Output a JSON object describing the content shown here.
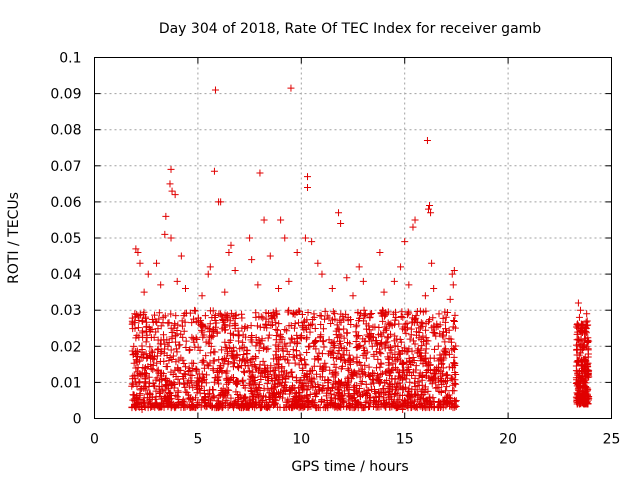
{
  "chart_data": {
    "type": "scatter",
    "title": "Day 304 of 2018, Rate Of TEC Index for receiver gamb",
    "xlabel": "GPS time / hours",
    "ylabel": "ROTI / TECUs",
    "xlim": [
      0,
      25
    ],
    "ylim": [
      0,
      0.1
    ],
    "xticks": [
      0,
      5,
      10,
      15,
      20,
      25
    ],
    "xtick_labels": [
      "0",
      "5",
      "10",
      "15",
      "20",
      "25"
    ],
    "yticks": [
      0,
      0.01,
      0.02,
      0.03,
      0.04,
      0.05,
      0.06,
      0.07,
      0.08,
      0.09,
      0.1
    ],
    "ytick_labels": [
      "0",
      "0.01",
      "0.02",
      "0.03",
      "0.04",
      "0.05",
      "0.06",
      "0.07",
      "0.08",
      "0.09",
      "0.1"
    ],
    "grid": true,
    "marker": "+",
    "color": "#e00000",
    "series": [
      {
        "name": "ROTI",
        "clusters": [
          {
            "x_range": [
              1.8,
              17.5
            ],
            "y_range": [
              0.003,
              0.03
            ],
            "count": 2200
          },
          {
            "x_range": [
              23.3,
              23.9
            ],
            "y_range": [
              0.004,
              0.027
            ],
            "count": 260
          }
        ],
        "points": [
          [
            9.5,
            0.0915
          ],
          [
            5.85,
            0.091
          ],
          [
            16.1,
            0.077
          ],
          [
            5.8,
            0.0685
          ],
          [
            8.0,
            0.068
          ],
          [
            3.7,
            0.069
          ],
          [
            10.3,
            0.067
          ],
          [
            3.65,
            0.065
          ],
          [
            3.75,
            0.063
          ],
          [
            3.9,
            0.062
          ],
          [
            10.3,
            0.064
          ],
          [
            6.0,
            0.06
          ],
          [
            6.1,
            0.06
          ],
          [
            16.2,
            0.059
          ],
          [
            16.15,
            0.058
          ],
          [
            11.8,
            0.057
          ],
          [
            16.25,
            0.057
          ],
          [
            3.45,
            0.056
          ],
          [
            11.9,
            0.054
          ],
          [
            15.5,
            0.055
          ],
          [
            8.2,
            0.055
          ],
          [
            9.0,
            0.055
          ],
          [
            15.4,
            0.053
          ],
          [
            3.4,
            0.051
          ],
          [
            3.7,
            0.05
          ],
          [
            7.5,
            0.05
          ],
          [
            9.2,
            0.05
          ],
          [
            10.2,
            0.05
          ],
          [
            10.5,
            0.049
          ],
          [
            15.0,
            0.049
          ],
          [
            2.0,
            0.047
          ],
          [
            2.1,
            0.046
          ],
          [
            6.6,
            0.048
          ],
          [
            6.5,
            0.046
          ],
          [
            13.8,
            0.046
          ],
          [
            9.8,
            0.046
          ],
          [
            4.2,
            0.045
          ],
          [
            8.5,
            0.045
          ],
          [
            2.2,
            0.043
          ],
          [
            3.0,
            0.043
          ],
          [
            5.6,
            0.042
          ],
          [
            7.6,
            0.044
          ],
          [
            10.8,
            0.043
          ],
          [
            12.8,
            0.042
          ],
          [
            14.8,
            0.042
          ],
          [
            16.3,
            0.043
          ],
          [
            17.4,
            0.041
          ],
          [
            17.3,
            0.04
          ],
          [
            2.6,
            0.04
          ],
          [
            5.5,
            0.04
          ],
          [
            6.8,
            0.041
          ],
          [
            11.0,
            0.04
          ],
          [
            12.2,
            0.039
          ],
          [
            13.0,
            0.038
          ],
          [
            14.5,
            0.038
          ],
          [
            3.2,
            0.037
          ],
          [
            4.0,
            0.038
          ],
          [
            4.4,
            0.036
          ],
          [
            7.9,
            0.037
          ],
          [
            8.9,
            0.036
          ],
          [
            9.4,
            0.038
          ],
          [
            11.5,
            0.036
          ],
          [
            15.2,
            0.037
          ],
          [
            16.4,
            0.036
          ],
          [
            17.35,
            0.037
          ],
          [
            23.4,
            0.032
          ],
          [
            23.5,
            0.03
          ],
          [
            23.8,
            0.029
          ],
          [
            23.45,
            0.028
          ],
          [
            23.6,
            0.026
          ],
          [
            2.4,
            0.035
          ],
          [
            5.2,
            0.034
          ],
          [
            6.3,
            0.035
          ],
          [
            12.5,
            0.034
          ],
          [
            14.0,
            0.035
          ],
          [
            16.0,
            0.034
          ],
          [
            17.2,
            0.033
          ],
          [
            2.3,
            0.0025
          ],
          [
            14.9,
            0.0025
          ],
          [
            10.7,
            0.003
          ]
        ]
      }
    ]
  }
}
